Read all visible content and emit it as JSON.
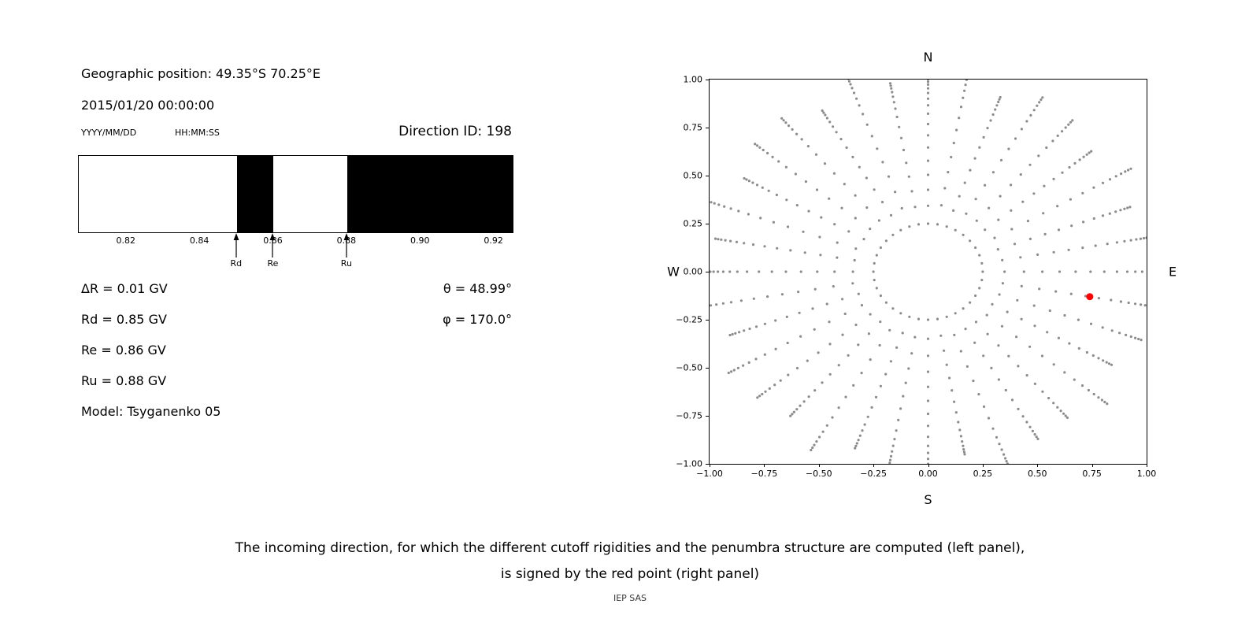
{
  "left_panel": {
    "geo_position": "Geographic position: 49.35°S 70.25°E",
    "datetime": "2015/01/20 00:00:00",
    "date_format_label": "YYYY/MM/DD",
    "time_format_label": "HH:MM:SS",
    "direction_id_label": "Direction ID: 198",
    "params": [
      "ΔR = 0.01 GV",
      "Rd = 0.85 GV",
      "Re = 0.86 GV",
      "Ru = 0.88 GV",
      "Model: Tsyganenko 05"
    ],
    "angles": [
      "θ = 48.99°",
      "φ = 170.0°"
    ]
  },
  "caption": {
    "line1": "The incoming direction, for which the different cutoff rigidities and the penumbra structure are computed (left panel),",
    "line2": "is signed by the red point (right panel)",
    "credit": "IEP SAS"
  },
  "chart_data": [
    {
      "type": "bar",
      "name": "penumbra-structure",
      "xlim": [
        0.807,
        0.925
      ],
      "xticks": [
        0.82,
        0.84,
        0.86,
        0.88,
        0.9,
        0.92
      ],
      "forbidden_bands": [
        [
          0.85,
          0.86
        ],
        [
          0.88,
          0.925
        ]
      ],
      "band_color": "#000000",
      "background": "#ffffff",
      "markers": [
        {
          "label": "Rd",
          "x": 0.85
        },
        {
          "label": "Re",
          "x": 0.86
        },
        {
          "label": "Ru",
          "x": 0.88
        }
      ]
    },
    {
      "type": "scatter",
      "name": "incoming-direction-map",
      "xlim": [
        -1,
        1
      ],
      "ylim": [
        -1,
        1
      ],
      "xticks": [
        -1,
        -0.75,
        -0.5,
        -0.25,
        0,
        0.25,
        0.5,
        0.75,
        1
      ],
      "yticks": [
        -1,
        -0.75,
        -0.5,
        -0.25,
        0,
        0.25,
        0.5,
        0.75,
        1
      ],
      "compass": {
        "north": "N",
        "south": "S",
        "west": "W",
        "east": "E"
      },
      "grid_dots": {
        "azimuth_count": 36,
        "ring_radius": 0.25,
        "spoke_radii": [
          0.345,
          0.43,
          0.51,
          0.585,
          0.655,
          0.72,
          0.78,
          0.835,
          0.88,
          0.915,
          0.945,
          0.97,
          0.99,
          1.005,
          1.018
        ],
        "length_variation": 0.07,
        "color": "#8c8c8c",
        "dot_radius_px": 1.6
      },
      "red_point": {
        "x": 0.74,
        "y": -0.13,
        "color": "#ff0000",
        "radius_px": 4.5
      }
    }
  ]
}
